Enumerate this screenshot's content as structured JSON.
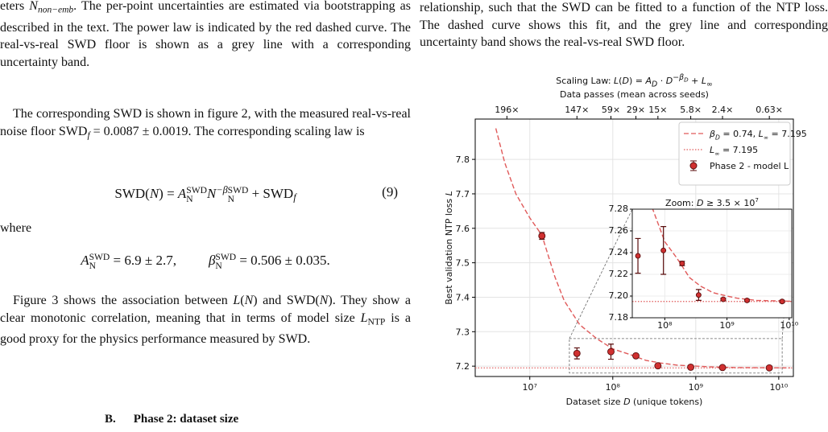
{
  "left": {
    "caption": [
      "eters ",
      {
        "i": "N"
      },
      {
        "isub": "non−emb"
      },
      ". The per-point uncertainties are estimated via bootstrapping as described in the text. The power law is indicated by the red dashed curve. The real-vs-real SWD floor is shown as a grey line with a corresponding uncertainty band."
    ],
    "p1": [
      "The corresponding SWD is shown in figure 2, with the measured real-vs-real noise floor SWD",
      {
        "isub": "f"
      },
      " = 0.0087 ± 0.0019. The corresponding scaling law is"
    ],
    "eq9": [
      "SWD(",
      {
        "i": "N"
      },
      ") = ",
      {
        "i": "A"
      },
      {
        "stack": [
          "SWD",
          "N"
        ]
      },
      {
        "i": "N"
      },
      {
        "isup": "−β"
      },
      {
        "stack": [
          "SWD",
          "N"
        ]
      },
      " + SWD",
      {
        "isub": "f"
      }
    ],
    "eq9_number": "(9)",
    "where": "where",
    "eq10a": [
      {
        "i": "A"
      },
      {
        "stack": [
          "SWD",
          "N"
        ]
      },
      " = 6.9 ± 2.7,"
    ],
    "eq10b": [
      {
        "i": "β"
      },
      {
        "stack": [
          "SWD",
          "N"
        ]
      },
      " = 0.506 ± 0.035."
    ],
    "p2": [
      "Figure 3 shows the association between ",
      {
        "i": "L"
      },
      "(",
      {
        "i": "N"
      },
      ") and SWD(",
      {
        "i": "N"
      },
      "). They show a clear monotonic correlation, meaning that in terms of model size ",
      {
        "i": "L"
      },
      {
        "sub": "NTP"
      },
      " is a good proxy for the physics performance measured by SWD."
    ],
    "heading_number": "B.",
    "heading": "Phase 2: dataset size"
  },
  "right": {
    "p": "relationship, such that the SWD can be fitted to a function of the NTP loss. The dashed curve shows this fit, and the grey line and corresponding uncertainty band shows the real-vs-real SWD floor."
  },
  "chart_data": {
    "type": "scatter",
    "title": [
      "Scaling Law: ",
      {
        "i": "L"
      },
      "(",
      {
        "i": "D"
      },
      ") = ",
      {
        "i": "A"
      },
      {
        "isub": "D"
      },
      " · ",
      {
        "i": "D"
      },
      {
        "isup": "−β"
      },
      {
        "isupsub": "D"
      },
      " + ",
      {
        "i": "L"
      },
      {
        "isub": "∞"
      }
    ],
    "xlabel": [
      "Dataset size ",
      {
        "i": "D"
      },
      " (unique tokens)"
    ],
    "ylabel": [
      "Best validation NTP loss ",
      {
        "i": "L"
      }
    ],
    "x2label": "Data passes (mean across seeds)",
    "xscale": "log",
    "xlim": [
      2200000,
      15000000000
    ],
    "ylim": [
      7.17,
      7.917
    ],
    "xticks": [
      {
        "value": 10000000,
        "label": "10⁷"
      },
      {
        "value": 100000000,
        "label": "10⁸"
      },
      {
        "value": 1000000000,
        "label": "10⁹"
      },
      {
        "value": 10000000000,
        "label": "10¹⁰"
      }
    ],
    "yticks": [
      7.2,
      7.3,
      7.4,
      7.5,
      7.6,
      7.7,
      7.8
    ],
    "x2ticks": [
      {
        "value": 5300000,
        "label": "196×"
      },
      {
        "value": 37000000,
        "label": "147×"
      },
      {
        "value": 95000000,
        "label": "59×"
      },
      {
        "value": 190000000,
        "label": "29×"
      },
      {
        "value": 350000000,
        "label": "15×"
      },
      {
        "value": 870000000,
        "label": "5.8×"
      },
      {
        "value": 2100000000,
        "label": "2.4×"
      },
      {
        "value": 7700000000,
        "label": "0.63×"
      }
    ],
    "grid": true,
    "legend": "upper right",
    "series": [
      {
        "name": [
          {
            "i": "β"
          },
          {
            "isub": "D"
          },
          " = 0.74, ",
          {
            "i": "L"
          },
          {
            "isub": "∞"
          },
          " = 7.195"
        ],
        "kind": "line",
        "dash": "dashed",
        "color": "#e05a5a",
        "x": [
          3900000,
          5000000,
          6800000,
          10000000,
          14000000,
          20000000,
          26000000,
          40000000,
          64000000,
          100000000,
          156000000,
          250000000,
          380000000,
          600000000,
          1000000000,
          1460000000,
          3000000000,
          13700000000
        ],
        "values": [
          7.89,
          7.79,
          7.7,
          7.63,
          7.58,
          7.46,
          7.39,
          7.32,
          7.28,
          7.25,
          7.235,
          7.217,
          7.209,
          7.203,
          7.2,
          7.198,
          7.196,
          7.195
        ]
      },
      {
        "name": [
          {
            "i": "L"
          },
          {
            "isub": "∞"
          },
          " = 7.195"
        ],
        "kind": "hline",
        "dash": "dotted",
        "color": "#e05a5a",
        "values": [
          7.195
        ]
      },
      {
        "name": "Phase 2 - model L",
        "kind": "errorbar",
        "color": "#d03030",
        "edge": "#5a0d0d",
        "x": [
          14000000,
          37000000,
          95000000,
          190000000,
          350000000,
          870000000,
          2100000000,
          7700000000
        ],
        "values": [
          7.578,
          7.237,
          7.242,
          7.23,
          7.201,
          7.197,
          7.196,
          7.195
        ],
        "errors": [
          0.01,
          0.016,
          0.022,
          0.002,
          0.005,
          0.001,
          0.001,
          0.001
        ]
      }
    ],
    "inset": {
      "title": [
        "Zoom: ",
        {
          "i": "D"
        },
        " ≥ 3.5 × 10",
        {
          "sup": "7"
        }
      ],
      "xlim": [
        30000000,
        11000000000
      ],
      "ylim": [
        7.18,
        7.28
      ],
      "xticks": [
        {
          "value": 100000000,
          "label": "10⁸"
        },
        {
          "value": 1000000000,
          "label": "10⁹"
        },
        {
          "value": 10000000000,
          "label": "10¹⁰"
        }
      ],
      "yticks": [
        7.18,
        {
          "value": 7.2,
          "label": "7.20"
        },
        7.22,
        7.24,
        7.26,
        7.28
      ]
    }
  }
}
